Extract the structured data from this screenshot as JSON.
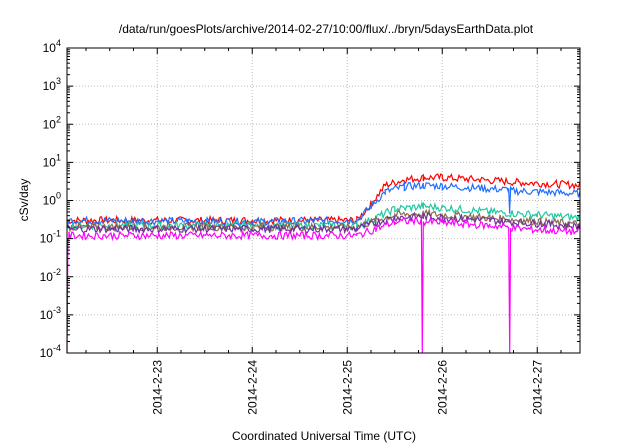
{
  "chart_data": {
    "type": "line",
    "title": "/data/run/goesPlots/archive/2014-02-27/10:00/flux/../bryn/5daysEarthData.plot",
    "xlabel": "Coordinated Universal Time (UTC)",
    "ylabel": "cSv/day",
    "yscale": "log",
    "ylim": [
      0.0001,
      10000
    ],
    "xlim": [
      2014.0222,
      2014.0275
    ],
    "y_ticks": [
      {
        "value": 0.0001,
        "base": "10",
        "exp": "-4"
      },
      {
        "value": 0.001,
        "base": "10",
        "exp": "-3"
      },
      {
        "value": 0.01,
        "base": "10",
        "exp": "-2"
      },
      {
        "value": 0.1,
        "base": "10",
        "exp": "-1"
      },
      {
        "value": 1,
        "base": "10",
        "exp": "0"
      },
      {
        "value": 10,
        "base": "10",
        "exp": "1"
      },
      {
        "value": 100,
        "base": "10",
        "exp": "2"
      },
      {
        "value": 1000,
        "base": "10",
        "exp": "3"
      },
      {
        "value": 10000,
        "base": "10",
        "exp": "4"
      }
    ],
    "x_ticks": [
      {
        "label": "2014-2-23",
        "day": 23
      },
      {
        "label": "2014-2-24",
        "day": 24
      },
      {
        "label": "2014-2-25",
        "day": 25
      },
      {
        "label": "2014-2-26",
        "day": 26
      },
      {
        "label": "2014-2-27",
        "day": 27
      }
    ],
    "x_range_days": [
      22.05,
      27.45
    ],
    "grid": true,
    "series": [
      {
        "color": "#ff0000",
        "x": [
          22.05,
          24.0,
          25.1,
          25.25,
          25.4,
          25.6,
          25.8,
          26.0,
          26.4,
          26.8,
          27.2,
          27.45
        ],
        "y": [
          0.3,
          0.3,
          0.3,
          0.8,
          2.5,
          3.5,
          4.0,
          4.0,
          3.5,
          3.0,
          2.7,
          2.5
        ]
      },
      {
        "color": "#1f6fff",
        "x": [
          22.05,
          24.0,
          25.1,
          25.25,
          25.4,
          25.6,
          25.8,
          26.0,
          26.4,
          26.7,
          26.71,
          26.72,
          27.0,
          27.45
        ],
        "y": [
          0.3,
          0.28,
          0.3,
          0.7,
          1.7,
          2.3,
          2.5,
          2.4,
          2.1,
          1.9,
          0.5,
          1.8,
          1.7,
          1.5
        ]
      },
      {
        "color": "#20c8a0",
        "x": [
          22.05,
          25.1,
          25.3,
          25.5,
          25.8,
          26.0,
          26.5,
          27.0,
          27.45
        ],
        "y": [
          0.22,
          0.22,
          0.35,
          0.6,
          0.7,
          0.65,
          0.5,
          0.42,
          0.35
        ]
      },
      {
        "color": "#8a6a4a",
        "x": [
          22.05,
          25.1,
          25.3,
          25.5,
          25.8,
          26.0,
          26.5,
          27.0,
          27.45
        ],
        "y": [
          0.2,
          0.2,
          0.3,
          0.42,
          0.45,
          0.42,
          0.35,
          0.28,
          0.24
        ]
      },
      {
        "color": "#7030a0",
        "x": [
          22.05,
          25.1,
          25.3,
          25.5,
          25.8,
          26.0,
          26.5,
          27.0,
          27.45
        ],
        "y": [
          0.18,
          0.18,
          0.26,
          0.36,
          0.38,
          0.36,
          0.3,
          0.25,
          0.21
        ]
      },
      {
        "color": "#ff00ff",
        "x": [
          22.05,
          22.06,
          22.07,
          25.1,
          25.3,
          25.5,
          25.78,
          25.79,
          25.8,
          26.0,
          26.5,
          26.7,
          26.71,
          26.72,
          27.0,
          27.45
        ],
        "y": [
          0.0001,
          0.1,
          0.12,
          0.12,
          0.18,
          0.27,
          0.3,
          0.0001,
          0.28,
          0.26,
          0.22,
          0.2,
          0.0001,
          0.19,
          0.17,
          0.15
        ]
      }
    ]
  }
}
